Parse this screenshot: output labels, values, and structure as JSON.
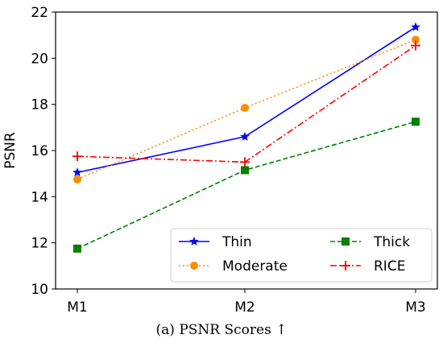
{
  "caption": "(a) PSNR Scores ↑",
  "chart_data": {
    "type": "line",
    "ylabel": "PSNR",
    "xlabel": "",
    "categories": [
      "M1",
      "M2",
      "M3"
    ],
    "ylim": [
      10,
      22
    ],
    "yticks": [
      10,
      12,
      14,
      16,
      18,
      20,
      22
    ],
    "grid": false,
    "legend_position": "lower-right",
    "series": [
      {
        "name": "Thin",
        "values": [
          15.05,
          16.6,
          21.35
        ],
        "color": "#0000ff",
        "line": "solid",
        "marker": "star"
      },
      {
        "name": "Moderate",
        "values": [
          14.75,
          17.85,
          20.8
        ],
        "color": "#ff8c00",
        "line": "dotted",
        "marker": "circle"
      },
      {
        "name": "Thick",
        "values": [
          11.75,
          15.15,
          17.25
        ],
        "color": "#008000",
        "line": "dashed",
        "marker": "square"
      },
      {
        "name": "RICE",
        "values": [
          15.75,
          15.5,
          20.55
        ],
        "color": "#ff0000",
        "line": "dashdot",
        "marker": "plus"
      }
    ]
  }
}
